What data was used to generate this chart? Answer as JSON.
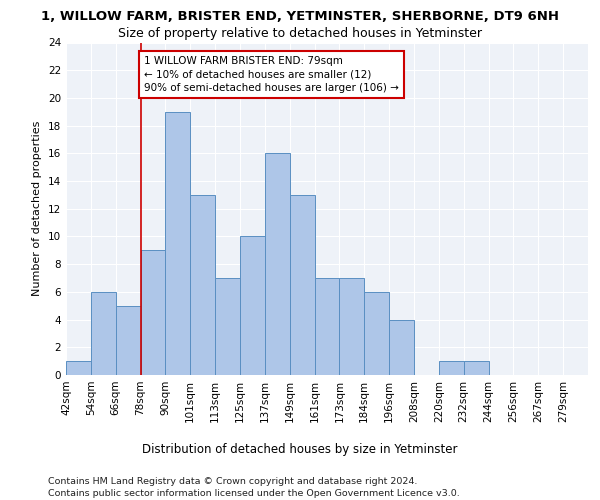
{
  "title1": "1, WILLOW FARM, BRISTER END, YETMINSTER, SHERBORNE, DT9 6NH",
  "title2": "Size of property relative to detached houses in Yetminster",
  "xlabel": "Distribution of detached houses by size in Yetminster",
  "ylabel": "Number of detached properties",
  "bin_labels": [
    "42sqm",
    "54sqm",
    "66sqm",
    "78sqm",
    "90sqm",
    "101sqm",
    "113sqm",
    "125sqm",
    "137sqm",
    "149sqm",
    "161sqm",
    "173sqm",
    "184sqm",
    "196sqm",
    "208sqm",
    "220sqm",
    "232sqm",
    "244sqm",
    "256sqm",
    "267sqm",
    "279sqm"
  ],
  "bar_values": [
    1,
    6,
    5,
    9,
    19,
    13,
    7,
    10,
    16,
    13,
    7,
    7,
    6,
    4,
    0,
    1,
    1,
    0,
    0,
    0,
    0
  ],
  "bar_color": "#aec6e8",
  "bar_edge_color": "#5a8fc2",
  "annotation_text": "1 WILLOW FARM BRISTER END: 79sqm\n← 10% of detached houses are smaller (12)\n90% of semi-detached houses are larger (106) →",
  "annotation_box_color": "white",
  "annotation_box_edge_color": "#cc0000",
  "vline_color": "#cc0000",
  "vline_index": 3,
  "ylim": [
    0,
    24
  ],
  "yticks": [
    0,
    2,
    4,
    6,
    8,
    10,
    12,
    14,
    16,
    18,
    20,
    22,
    24
  ],
  "bg_color": "#eef2f8",
  "footer1": "Contains HM Land Registry data © Crown copyright and database right 2024.",
  "footer2": "Contains public sector information licensed under the Open Government Licence v3.0.",
  "title1_fontsize": 9.5,
  "title2_fontsize": 9,
  "xlabel_fontsize": 8.5,
  "ylabel_fontsize": 8,
  "tick_fontsize": 7.5,
  "annotation_fontsize": 7.5,
  "footer_fontsize": 6.8
}
